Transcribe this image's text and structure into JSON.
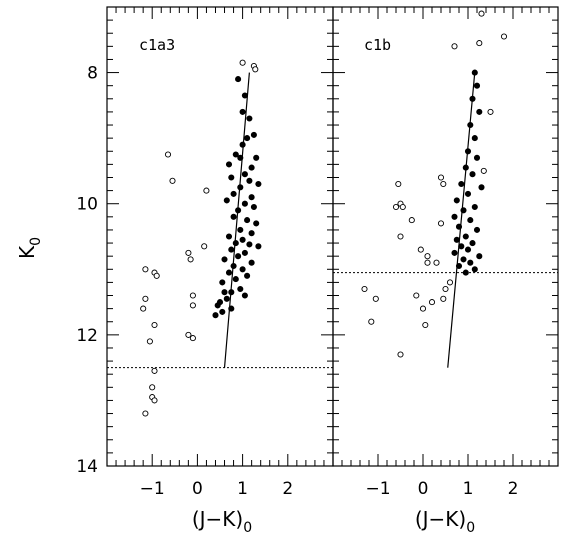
{
  "figure": {
    "y_axis_label": "K",
    "y_axis_subscript": "0",
    "x_axis_label": "(J−K)",
    "x_axis_subscript": "0"
  },
  "chart_data": [
    {
      "type": "scatter",
      "panel_label": "c1a3",
      "xlim": [
        -2,
        3
      ],
      "ylim": [
        14,
        7
      ],
      "y_inverted": true,
      "xticks": [
        -1,
        0,
        1,
        2
      ],
      "xtick_labels": [
        "−1",
        "0",
        "1",
        "2"
      ],
      "yticks": [
        8,
        10,
        12,
        14
      ],
      "ytick_labels": [
        "8",
        "10",
        "12",
        "14"
      ],
      "cutoff_k": 12.5,
      "fit_line": [
        [
          0.6,
          12.5
        ],
        [
          1.15,
          8.0
        ]
      ],
      "series": [
        {
          "marker": "filled",
          "points": [
            [
              0.9,
              8.1
            ],
            [
              1.05,
              8.35
            ],
            [
              1.0,
              8.6
            ],
            [
              1.15,
              8.7
            ],
            [
              1.25,
              8.95
            ],
            [
              1.1,
              9.0
            ],
            [
              1.0,
              9.1
            ],
            [
              0.85,
              9.25
            ],
            [
              0.95,
              9.3
            ],
            [
              1.3,
              9.3
            ],
            [
              0.7,
              9.4
            ],
            [
              1.2,
              9.45
            ],
            [
              1.05,
              9.55
            ],
            [
              0.75,
              9.6
            ],
            [
              1.15,
              9.65
            ],
            [
              1.35,
              9.7
            ],
            [
              0.95,
              9.75
            ],
            [
              0.8,
              9.85
            ],
            [
              1.2,
              9.9
            ],
            [
              0.65,
              9.95
            ],
            [
              1.05,
              10.0
            ],
            [
              1.25,
              10.05
            ],
            [
              0.9,
              10.1
            ],
            [
              0.8,
              10.2
            ],
            [
              1.1,
              10.25
            ],
            [
              1.3,
              10.3
            ],
            [
              0.95,
              10.4
            ],
            [
              1.2,
              10.45
            ],
            [
              0.7,
              10.5
            ],
            [
              1.0,
              10.55
            ],
            [
              0.85,
              10.6
            ],
            [
              1.15,
              10.62
            ],
            [
              1.35,
              10.65
            ],
            [
              0.75,
              10.7
            ],
            [
              1.05,
              10.75
            ],
            [
              0.9,
              10.8
            ],
            [
              0.6,
              10.85
            ],
            [
              1.2,
              10.9
            ],
            [
              0.8,
              10.95
            ],
            [
              1.0,
              11.0
            ],
            [
              0.7,
              11.05
            ],
            [
              1.1,
              11.1
            ],
            [
              0.85,
              11.15
            ],
            [
              0.55,
              11.2
            ],
            [
              0.95,
              11.3
            ],
            [
              0.75,
              11.35
            ],
            [
              1.05,
              11.4
            ],
            [
              0.65,
              11.45
            ],
            [
              0.5,
              11.5
            ],
            [
              0.45,
              11.55
            ],
            [
              0.55,
              11.65
            ],
            [
              0.4,
              11.7
            ],
            [
              0.75,
              11.6
            ],
            [
              0.6,
              11.35
            ]
          ]
        },
        {
          "marker": "open",
          "points": [
            [
              1.0,
              7.85
            ],
            [
              1.25,
              7.9
            ],
            [
              1.28,
              7.95
            ],
            [
              -0.65,
              9.25
            ],
            [
              -0.55,
              9.65
            ],
            [
              0.2,
              9.8
            ],
            [
              -1.15,
              11.0
            ],
            [
              -0.95,
              11.05
            ],
            [
              -0.9,
              11.1
            ],
            [
              -0.2,
              10.75
            ],
            [
              -0.15,
              10.85
            ],
            [
              0.15,
              10.65
            ],
            [
              -1.15,
              11.45
            ],
            [
              -0.1,
              11.4
            ],
            [
              -1.2,
              11.6
            ],
            [
              -0.1,
              11.55
            ],
            [
              -0.95,
              11.85
            ],
            [
              -0.2,
              12.0
            ],
            [
              -0.1,
              12.05
            ],
            [
              -1.05,
              12.1
            ],
            [
              -0.95,
              12.55
            ],
            [
              -1.0,
              12.8
            ],
            [
              -1.0,
              12.95
            ],
            [
              -0.95,
              13.0
            ],
            [
              -1.15,
              13.2
            ]
          ]
        }
      ]
    },
    {
      "type": "scatter",
      "panel_label": "c1b",
      "xlim": [
        -2,
        3
      ],
      "ylim": [
        14,
        7
      ],
      "y_inverted": true,
      "xticks": [
        -1,
        0,
        1,
        2
      ],
      "xtick_labels": [
        "−1",
        "0",
        "1",
        "2"
      ],
      "yticks": [
        8,
        10,
        12,
        14
      ],
      "ytick_labels": [
        "8",
        "10",
        "12",
        "14"
      ],
      "cutoff_k": 11.05,
      "fit_line": [
        [
          0.55,
          12.5
        ],
        [
          1.15,
          8.0
        ]
      ],
      "series": [
        {
          "marker": "filled",
          "points": [
            [
              1.15,
              8.0
            ],
            [
              1.2,
              8.2
            ],
            [
              1.1,
              8.4
            ],
            [
              1.25,
              8.6
            ],
            [
              1.05,
              8.8
            ],
            [
              1.15,
              9.0
            ],
            [
              1.0,
              9.2
            ],
            [
              1.2,
              9.3
            ],
            [
              0.95,
              9.45
            ],
            [
              1.1,
              9.55
            ],
            [
              0.85,
              9.7
            ],
            [
              1.3,
              9.75
            ],
            [
              1.0,
              9.85
            ],
            [
              0.75,
              9.95
            ],
            [
              1.15,
              10.05
            ],
            [
              0.9,
              10.1
            ],
            [
              0.7,
              10.2
            ],
            [
              1.05,
              10.25
            ],
            [
              0.8,
              10.35
            ],
            [
              1.2,
              10.4
            ],
            [
              0.95,
              10.5
            ],
            [
              0.75,
              10.55
            ],
            [
              1.1,
              10.6
            ],
            [
              0.85,
              10.65
            ],
            [
              1.0,
              10.7
            ],
            [
              0.7,
              10.75
            ],
            [
              1.25,
              10.8
            ],
            [
              0.9,
              10.85
            ],
            [
              1.05,
              10.9
            ],
            [
              0.8,
              10.95
            ],
            [
              1.15,
              11.0
            ],
            [
              0.95,
              11.05
            ]
          ]
        },
        {
          "marker": "open",
          "points": [
            [
              1.3,
              7.1
            ],
            [
              0.7,
              7.6
            ],
            [
              1.25,
              7.55
            ],
            [
              1.8,
              7.45
            ],
            [
              1.5,
              8.6
            ],
            [
              0.4,
              9.6
            ],
            [
              0.45,
              9.7
            ],
            [
              1.35,
              9.5
            ],
            [
              -0.55,
              9.7
            ],
            [
              -0.5,
              10.0
            ],
            [
              -0.45,
              10.05
            ],
            [
              -0.6,
              10.05
            ],
            [
              0.4,
              10.3
            ],
            [
              -0.25,
              10.25
            ],
            [
              -0.5,
              10.5
            ],
            [
              -0.05,
              10.7
            ],
            [
              0.1,
              10.8
            ],
            [
              0.1,
              10.9
            ],
            [
              0.3,
              10.9
            ],
            [
              0.6,
              11.2
            ],
            [
              0.5,
              11.3
            ],
            [
              0.45,
              11.45
            ],
            [
              0.2,
              11.5
            ],
            [
              0.0,
              11.6
            ],
            [
              -1.3,
              11.3
            ],
            [
              -1.05,
              11.45
            ],
            [
              -0.15,
              11.4
            ],
            [
              -1.15,
              11.8
            ],
            [
              0.05,
              11.85
            ],
            [
              -0.5,
              12.3
            ]
          ]
        }
      ]
    }
  ]
}
